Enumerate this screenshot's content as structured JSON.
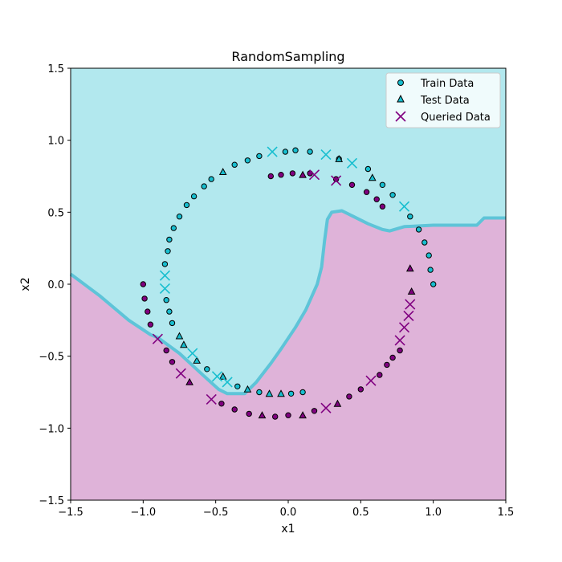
{
  "chart_data": {
    "type": "scatter",
    "title": "RandomSampling",
    "xlabel": "x1",
    "ylabel": "x2",
    "xlim": [
      -1.5,
      1.5
    ],
    "ylim": [
      -1.5,
      1.5
    ],
    "xticks": [
      "−1.5",
      "−1.0",
      "−0.5",
      "0.0",
      "0.5",
      "1.0",
      "1.5"
    ],
    "yticks": [
      "−1.5",
      "−1.0",
      "−0.5",
      "0.0",
      "0.5",
      "1.0",
      "1.5"
    ],
    "grid": false,
    "legend_position": "top-right",
    "colors": {
      "class0": "#17becf",
      "class1": "#800080",
      "region0": "#b2e8ee",
      "region1": "#dfb3d9",
      "boundary": "#5ec4d8"
    },
    "decision_boundary": [
      [
        -1.5,
        0.07
      ],
      [
        -1.3,
        -0.08
      ],
      [
        -1.1,
        -0.25
      ],
      [
        -0.95,
        -0.35
      ],
      [
        -0.9,
        -0.37
      ],
      [
        -0.75,
        -0.48
      ],
      [
        -0.6,
        -0.62
      ],
      [
        -0.48,
        -0.73
      ],
      [
        -0.42,
        -0.76
      ],
      [
        -0.3,
        -0.76
      ],
      [
        -0.22,
        -0.68
      ],
      [
        -0.12,
        -0.55
      ],
      [
        -0.05,
        -0.45
      ],
      [
        0.05,
        -0.3
      ],
      [
        0.12,
        -0.18
      ],
      [
        0.2,
        0.0
      ],
      [
        0.23,
        0.12
      ],
      [
        0.25,
        0.3
      ],
      [
        0.27,
        0.45
      ],
      [
        0.3,
        0.5
      ],
      [
        0.37,
        0.51
      ],
      [
        0.45,
        0.47
      ],
      [
        0.55,
        0.42
      ],
      [
        0.65,
        0.38
      ],
      [
        0.7,
        0.37
      ],
      [
        0.8,
        0.4
      ],
      [
        1.0,
        0.41
      ],
      [
        1.3,
        0.41
      ],
      [
        1.35,
        0.46
      ],
      [
        1.5,
        0.46
      ]
    ],
    "legend": [
      {
        "label": "Train Data",
        "marker": "circle"
      },
      {
        "label": "Test Data",
        "marker": "triangle"
      },
      {
        "label": "Queried Data",
        "marker": "x"
      }
    ],
    "series": [
      {
        "name": "Train Data",
        "marker": "circle",
        "points": [
          [
            1.0,
            0.0,
            0
          ],
          [
            0.98,
            0.1,
            0
          ],
          [
            0.97,
            0.2,
            0
          ],
          [
            0.94,
            0.29,
            0
          ],
          [
            0.9,
            0.38,
            0
          ],
          [
            0.84,
            0.47,
            0
          ],
          [
            0.72,
            0.62,
            0
          ],
          [
            0.65,
            0.69,
            0
          ],
          [
            0.55,
            0.8,
            0
          ],
          [
            0.35,
            0.87,
            0
          ],
          [
            0.15,
            0.92,
            0
          ],
          [
            0.05,
            0.93,
            0
          ],
          [
            -0.02,
            0.92,
            0
          ],
          [
            -0.2,
            0.89,
            0
          ],
          [
            -0.28,
            0.86,
            0
          ],
          [
            -0.37,
            0.83,
            0
          ],
          [
            -0.53,
            0.73,
            0
          ],
          [
            -0.58,
            0.68,
            0
          ],
          [
            -0.65,
            0.61,
            0
          ],
          [
            -0.7,
            0.55,
            0
          ],
          [
            -0.75,
            0.47,
            0
          ],
          [
            -0.79,
            0.39,
            0
          ],
          [
            -0.82,
            0.31,
            0
          ],
          [
            -0.83,
            0.23,
            0
          ],
          [
            -0.85,
            0.14,
            0
          ],
          [
            -0.84,
            -0.11,
            0
          ],
          [
            -0.82,
            -0.19,
            0
          ],
          [
            -0.8,
            -0.27,
            0
          ],
          [
            -0.56,
            -0.59,
            0
          ],
          [
            -0.35,
            -0.71,
            0
          ],
          [
            -0.2,
            -0.75,
            0
          ],
          [
            0.02,
            -0.76,
            0
          ],
          [
            0.1,
            -0.75,
            0
          ],
          [
            -1.0,
            0.0,
            1
          ],
          [
            -0.99,
            -0.1,
            1
          ],
          [
            -0.97,
            -0.19,
            1
          ],
          [
            -0.95,
            -0.28,
            1
          ],
          [
            -0.84,
            -0.46,
            1
          ],
          [
            -0.8,
            -0.54,
            1
          ],
          [
            -0.46,
            -0.83,
            1
          ],
          [
            -0.37,
            -0.87,
            1
          ],
          [
            -0.27,
            -0.9,
            1
          ],
          [
            -0.09,
            -0.92,
            1
          ],
          [
            0.0,
            -0.91,
            1
          ],
          [
            0.18,
            -0.88,
            1
          ],
          [
            0.42,
            -0.78,
            1
          ],
          [
            0.5,
            -0.73,
            1
          ],
          [
            0.63,
            -0.63,
            1
          ],
          [
            0.68,
            -0.56,
            1
          ],
          [
            0.72,
            -0.51,
            1
          ],
          [
            0.77,
            -0.46,
            1
          ],
          [
            0.61,
            0.59,
            1
          ],
          [
            0.54,
            0.64,
            1
          ],
          [
            0.44,
            0.69,
            1
          ],
          [
            0.33,
            0.73,
            1
          ],
          [
            0.15,
            0.77,
            1
          ],
          [
            0.03,
            0.77,
            1
          ],
          [
            -0.05,
            0.76,
            1
          ],
          [
            -0.12,
            0.75,
            1
          ],
          [
            0.65,
            0.54,
            1
          ]
        ]
      },
      {
        "name": "Test Data",
        "marker": "triangle",
        "points": [
          [
            0.35,
            0.87,
            0
          ],
          [
            0.58,
            0.74,
            0
          ],
          [
            -0.45,
            0.78,
            0
          ],
          [
            -0.75,
            -0.36,
            0
          ],
          [
            -0.72,
            -0.42,
            0
          ],
          [
            -0.63,
            -0.53,
            0
          ],
          [
            -0.45,
            -0.64,
            0
          ],
          [
            -0.13,
            -0.76,
            0
          ],
          [
            -0.05,
            -0.76,
            0
          ],
          [
            -0.28,
            -0.73,
            0
          ],
          [
            0.1,
            0.76,
            1
          ],
          [
            0.85,
            -0.05,
            1
          ],
          [
            0.84,
            0.11,
            1
          ],
          [
            0.34,
            -0.83,
            1
          ],
          [
            0.1,
            -0.91,
            1
          ],
          [
            -0.18,
            -0.91,
            1
          ],
          [
            -0.68,
            -0.68,
            1
          ]
        ]
      },
      {
        "name": "Queried Data",
        "marker": "x",
        "points": [
          [
            0.26,
            0.9,
            0
          ],
          [
            0.44,
            0.84,
            0
          ],
          [
            -0.11,
            0.92,
            0
          ],
          [
            0.8,
            0.54,
            0
          ],
          [
            -0.85,
            0.06,
            0
          ],
          [
            -0.85,
            -0.03,
            0
          ],
          [
            -0.66,
            -0.48,
            0
          ],
          [
            -0.49,
            -0.64,
            0
          ],
          [
            -0.42,
            -0.68,
            0
          ],
          [
            0.18,
            0.76,
            1
          ],
          [
            0.33,
            0.72,
            1
          ],
          [
            0.84,
            -0.14,
            1
          ],
          [
            0.83,
            -0.22,
            1
          ],
          [
            0.8,
            -0.3,
            1
          ],
          [
            0.77,
            -0.39,
            1
          ],
          [
            0.57,
            -0.67,
            1
          ],
          [
            0.26,
            -0.86,
            1
          ],
          [
            -0.53,
            -0.8,
            1
          ],
          [
            -0.74,
            -0.62,
            1
          ],
          [
            -0.9,
            -0.38,
            1
          ]
        ]
      }
    ]
  }
}
